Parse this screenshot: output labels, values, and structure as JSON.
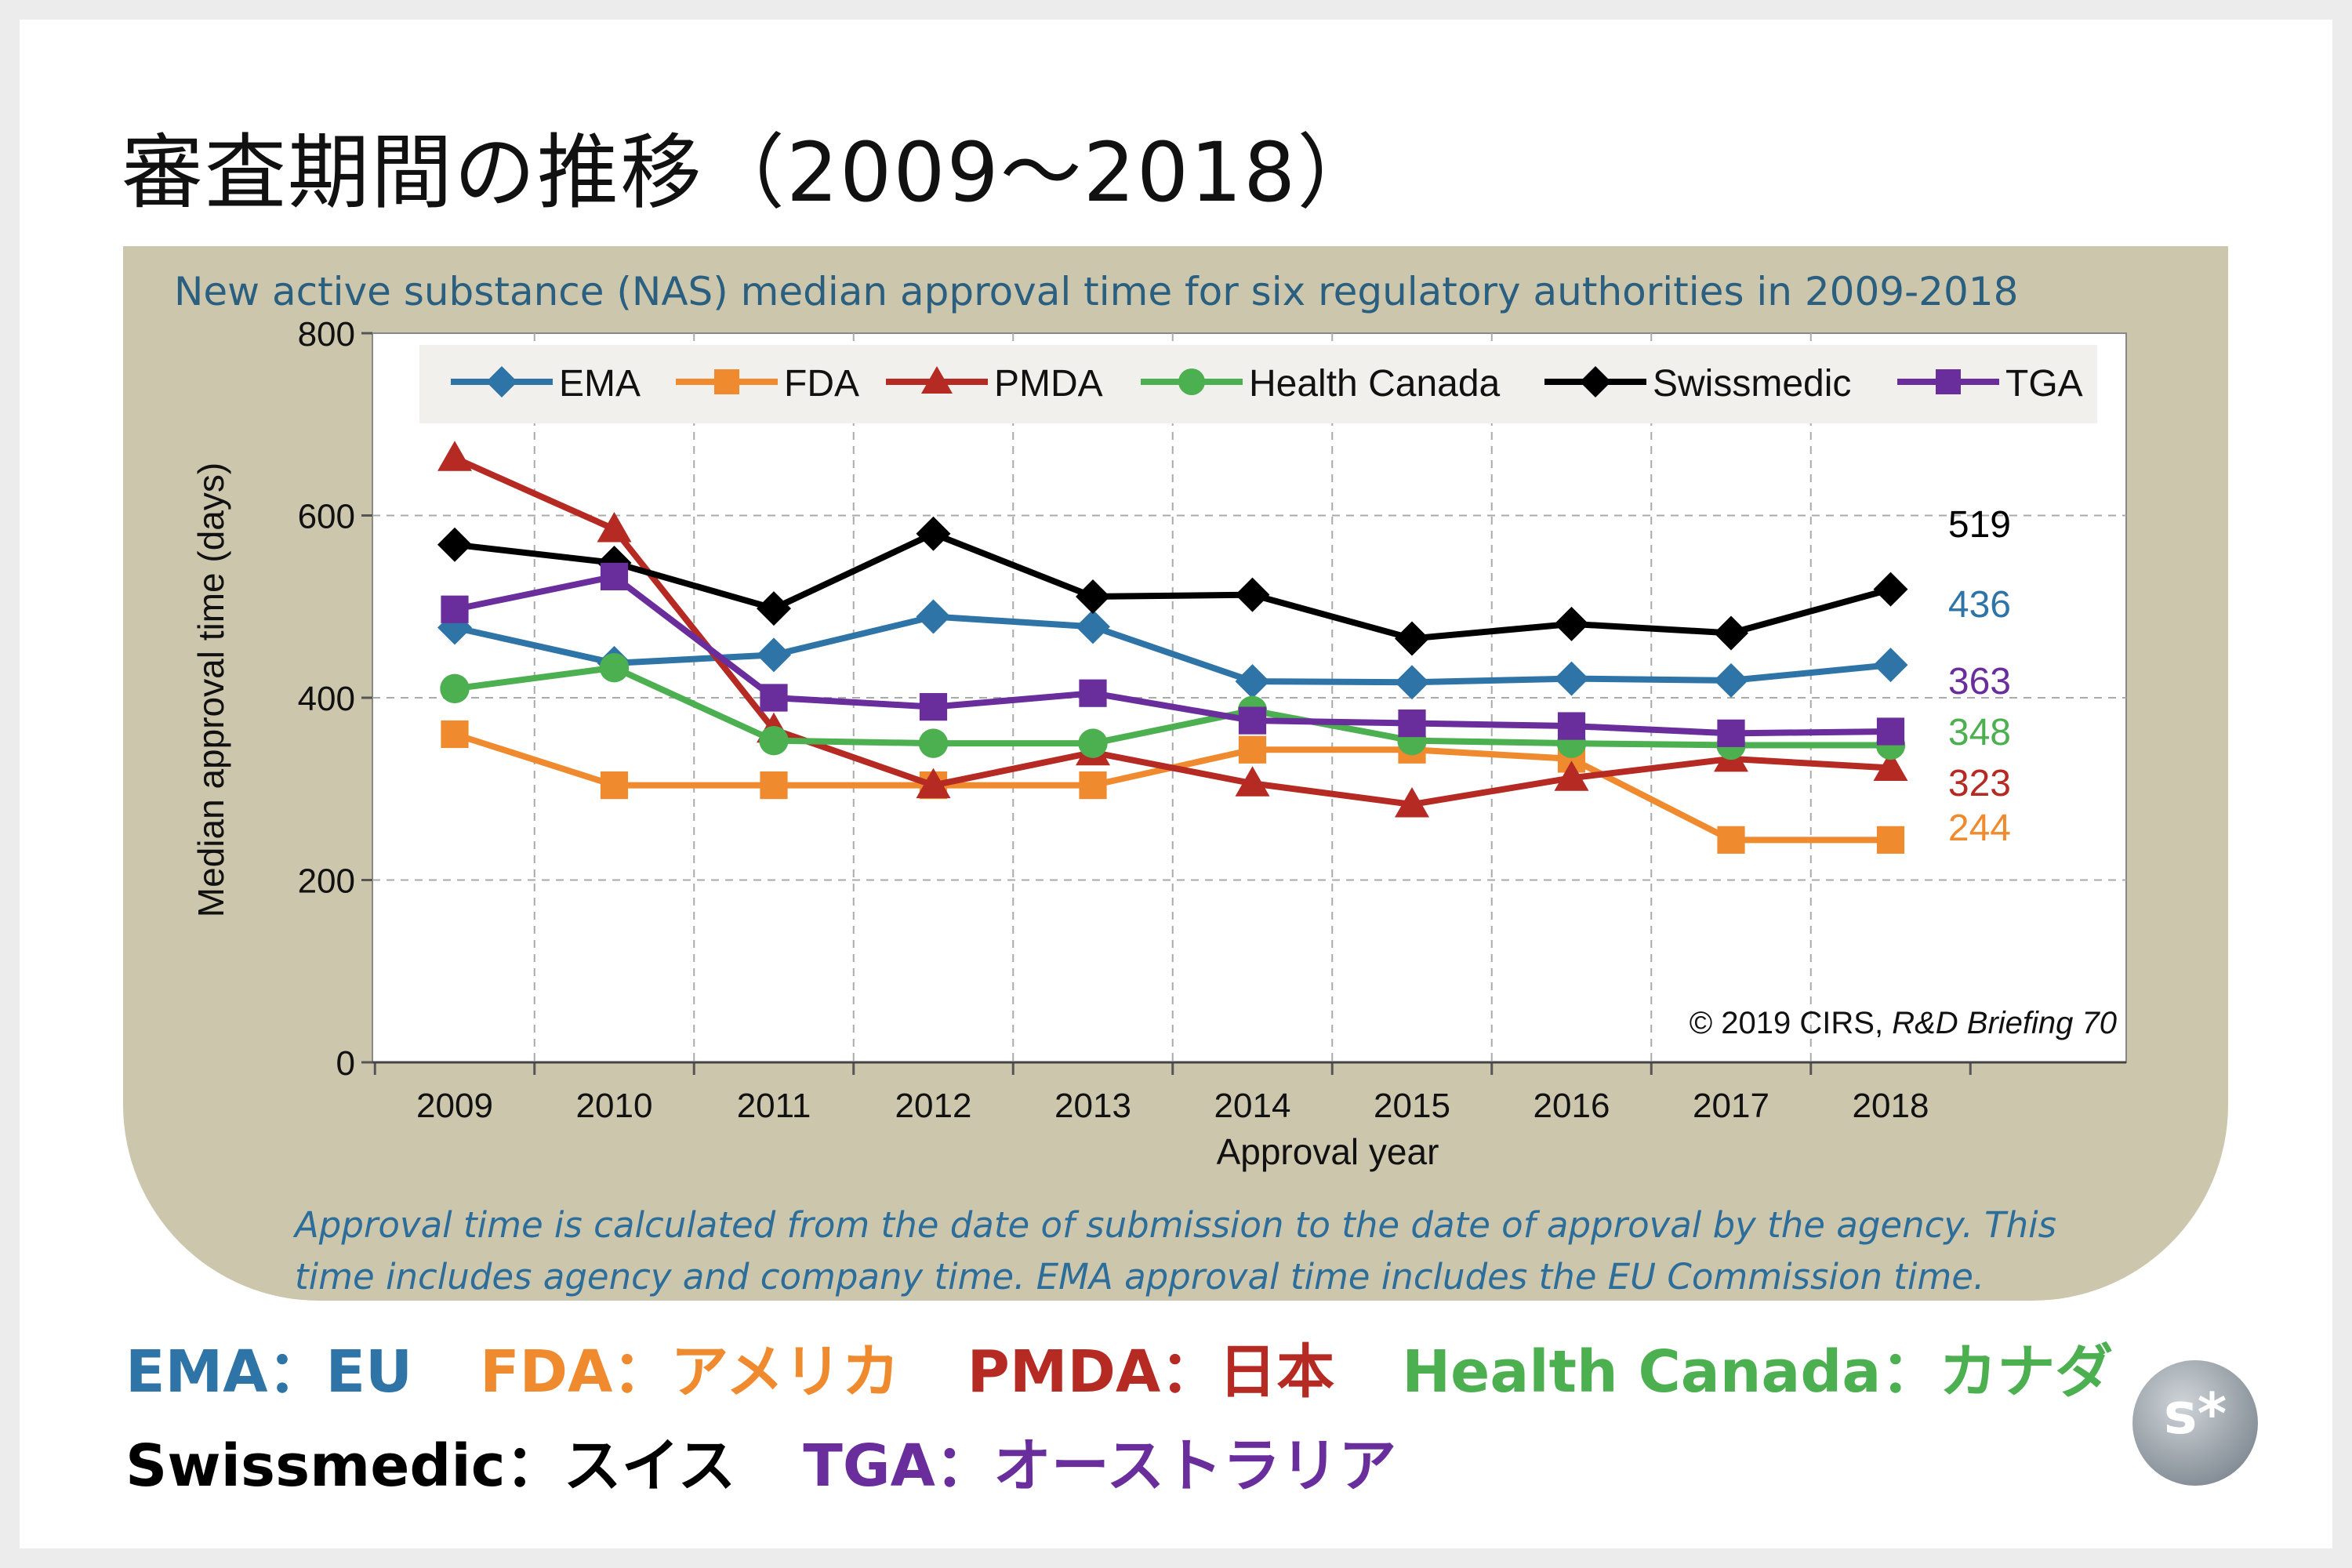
{
  "page": {
    "title": "審査期間の推移（2009～2018）"
  },
  "chart_data": {
    "type": "line",
    "title": "New active substance (NAS) median approval time for six regulatory authorities in 2009-2018",
    "xlabel": "Approval year",
    "ylabel": "Median approval time (days)",
    "ylim": [
      0,
      800
    ],
    "yticks": [
      "0",
      "200",
      "400",
      "600",
      "800"
    ],
    "categories": [
      "2009",
      "2010",
      "2011",
      "2012",
      "2013",
      "2014",
      "2015",
      "2016",
      "2017",
      "2018"
    ],
    "grid": true,
    "legend_position": "top",
    "series": [
      {
        "name": "EMA",
        "color": "#2e74a6",
        "marker": "diamond",
        "values": [
          477,
          438,
          447,
          489,
          478,
          418,
          417,
          421,
          419,
          436
        ],
        "end_label": "436"
      },
      {
        "name": "FDA",
        "color": "#ef8a2e",
        "marker": "square",
        "values": [
          360,
          304,
          304,
          304,
          304,
          343,
          343,
          333,
          244,
          244
        ],
        "end_label": "244"
      },
      {
        "name": "PMDA",
        "color": "#b52a22",
        "marker": "triangle",
        "values": [
          663,
          585,
          365,
          304,
          340,
          306,
          283,
          312,
          333,
          323
        ],
        "end_label": "323"
      },
      {
        "name": "Health Canada",
        "color": "#4caf50",
        "marker": "circle",
        "values": [
          410,
          433,
          353,
          350,
          350,
          386,
          353,
          350,
          348,
          348
        ],
        "end_label": "348"
      },
      {
        "name": "Swissmedic",
        "color": "#000000",
        "marker": "diamond",
        "values": [
          568,
          548,
          498,
          580,
          511,
          513,
          465,
          481,
          471,
          519
        ],
        "end_label": "519"
      },
      {
        "name": "TGA",
        "color": "#6a2e9c",
        "marker": "square",
        "values": [
          497,
          533,
          400,
          390,
          405,
          375,
          372,
          369,
          361,
          363
        ],
        "end_label": "363"
      }
    ],
    "copyright": "© 2019 CIRS, ",
    "copyright_source": "R&D Briefing 70"
  },
  "note": "Approval time is calculated from the date of submission to the date of approval by the agency. This time includes agency and company time. EMA approval time includes the EU Commission time.",
  "agencies": [
    {
      "abbr": "EMA",
      "sep": "：",
      "region": "EU",
      "color": "#2e74a6"
    },
    {
      "abbr": "FDA",
      "sep": "：",
      "region": "アメリカ",
      "color": "#ef8a2e"
    },
    {
      "abbr": "PMDA",
      "sep": "：",
      "region": "日本",
      "color": "#b52a22"
    },
    {
      "abbr": "Health Canada",
      "sep": "：",
      "region": "カナダ",
      "color": "#4caf50"
    },
    {
      "abbr": "Swissmedic",
      "sep": "：",
      "region": "スイス",
      "color": "#000000"
    },
    {
      "abbr": "TGA",
      "sep": "：",
      "region": "オーストラリア",
      "color": "#6a2e9c"
    }
  ],
  "logo": {
    "text": "s*"
  }
}
